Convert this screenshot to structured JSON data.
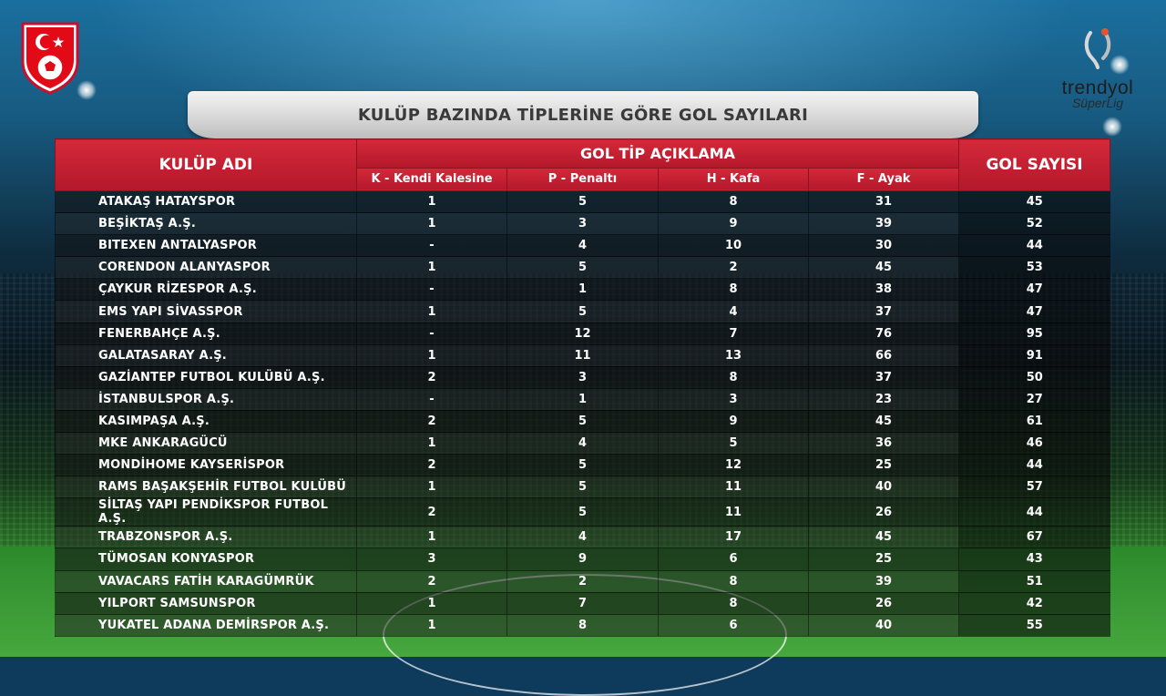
{
  "title": "KULÜP BAZINDA TİPLERİNE GÖRE GOL SAYILARI",
  "header": {
    "club_col": "KULÜP ADI",
    "goal_type_group": "GOL TİP AÇIKLAMA",
    "goal_types": [
      "K - Kendi Kalesine",
      "P - Penaltı",
      "H - Kafa",
      "F - Ayak"
    ],
    "total_col": "GOL SAYISI"
  },
  "logos": {
    "league_brand": "trendyol",
    "league_sub": "SüperLig"
  },
  "colors": {
    "header_red": "#c41f30",
    "title_banner": "#d8d8d8"
  },
  "rows": [
    {
      "club": "ATAKAŞ HATAYSPOR",
      "k": "1",
      "p": "5",
      "h": "8",
      "f": "31",
      "total": "45"
    },
    {
      "club": "BEŞİKTAŞ A.Ş.",
      "k": "1",
      "p": "3",
      "h": "9",
      "f": "39",
      "total": "52"
    },
    {
      "club": "BITEXEN ANTALYASPOR",
      "k": "-",
      "p": "4",
      "h": "10",
      "f": "30",
      "total": "44"
    },
    {
      "club": "CORENDON ALANYASPOR",
      "k": "1",
      "p": "5",
      "h": "2",
      "f": "45",
      "total": "53"
    },
    {
      "club": "ÇAYKUR RİZESPOR A.Ş.",
      "k": "-",
      "p": "1",
      "h": "8",
      "f": "38",
      "total": "47"
    },
    {
      "club": "EMS YAPI SİVASSPOR",
      "k": "1",
      "p": "5",
      "h": "4",
      "f": "37",
      "total": "47"
    },
    {
      "club": "FENERBAHÇE A.Ş.",
      "k": "-",
      "p": "12",
      "h": "7",
      "f": "76",
      "total": "95"
    },
    {
      "club": "GALATASARAY A.Ş.",
      "k": "1",
      "p": "11",
      "h": "13",
      "f": "66",
      "total": "91"
    },
    {
      "club": "GAZİANTEP FUTBOL KULÜBÜ A.Ş.",
      "k": "2",
      "p": "3",
      "h": "8",
      "f": "37",
      "total": "50"
    },
    {
      "club": "İSTANBULSPOR A.Ş.",
      "k": "-",
      "p": "1",
      "h": "3",
      "f": "23",
      "total": "27"
    },
    {
      "club": "KASIMPAŞA A.Ş.",
      "k": "2",
      "p": "5",
      "h": "9",
      "f": "45",
      "total": "61"
    },
    {
      "club": "MKE ANKARAGÜCÜ",
      "k": "1",
      "p": "4",
      "h": "5",
      "f": "36",
      "total": "46"
    },
    {
      "club": "MONDİHOME KAYSERİSPOR",
      "k": "2",
      "p": "5",
      "h": "12",
      "f": "25",
      "total": "44"
    },
    {
      "club": "RAMS BAŞAKŞEHİR FUTBOL KULÜBÜ",
      "k": "1",
      "p": "5",
      "h": "11",
      "f": "40",
      "total": "57"
    },
    {
      "club": "SİLTAŞ YAPI PENDİKSPOR FUTBOL A.Ş.",
      "k": "2",
      "p": "5",
      "h": "11",
      "f": "26",
      "total": "44"
    },
    {
      "club": "TRABZONSPOR A.Ş.",
      "k": "1",
      "p": "4",
      "h": "17",
      "f": "45",
      "total": "67"
    },
    {
      "club": "TÜMOSAN KONYASPOR",
      "k": "3",
      "p": "9",
      "h": "6",
      "f": "25",
      "total": "43"
    },
    {
      "club": "VAVACARS FATİH KARAGÜMRÜK",
      "k": "2",
      "p": "2",
      "h": "8",
      "f": "39",
      "total": "51"
    },
    {
      "club": "YILPORT SAMSUNSPOR",
      "k": "1",
      "p": "7",
      "h": "8",
      "f": "26",
      "total": "42"
    },
    {
      "club": "YUKATEL ADANA DEMİRSPOR A.Ş.",
      "k": "1",
      "p": "8",
      "h": "6",
      "f": "40",
      "total": "55"
    }
  ]
}
